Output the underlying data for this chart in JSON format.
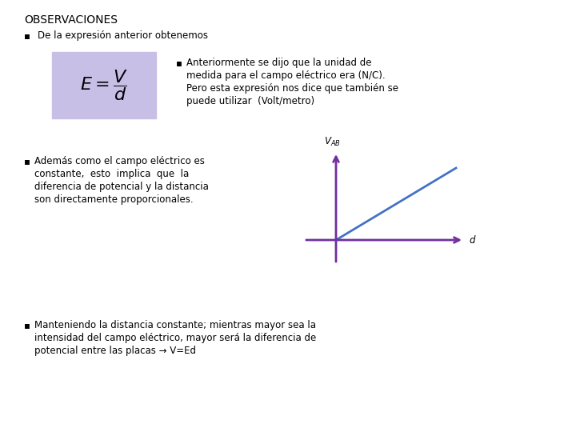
{
  "bg_color": "#ffffff",
  "title": "OBSERVACIONES",
  "title_fontsize": 10,
  "bullet1": "De la expresión anterior obtenemos",
  "formula_box_color": "#c8bfe7",
  "formula_text": "$E = \\dfrac{V}{d}$",
  "bullet2_lines": [
    "Anteriormente se dijo que la unidad de",
    "medida para el campo eléctrico era (N/C).",
    "Pero esta expresión nos dice que también se",
    "puede utilizar  (Volt/metro)"
  ],
  "bullet3_lines": [
    "Además como el campo eléctrico es",
    "constante,  esto  implica  que  la",
    "diferencia de potencial y la distancia",
    "son directamente proporcionales."
  ],
  "bullet4_lines": [
    "Manteniendo la distancia constante; mientras mayor sea la",
    "intensidad del campo eléctrico, mayor será la diferencia de",
    "potencial entre las placas → V=Ed"
  ],
  "axis_color": "#7030a0",
  "line_color": "#4472c4",
  "text_fontsize": 8.5,
  "bullet_symbol": "▪"
}
